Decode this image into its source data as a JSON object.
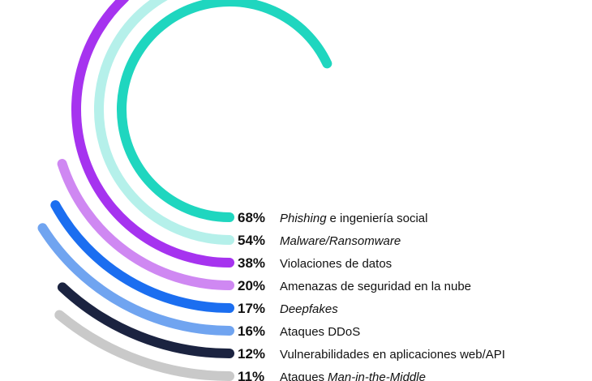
{
  "chart_data": {
    "type": "radial_bar",
    "values": [
      68,
      54,
      38,
      20,
      17,
      16,
      12,
      11
    ],
    "value_labels": [
      "68%",
      "54%",
      "38%",
      "20%",
      "17%",
      "16%",
      "12%",
      "11%"
    ],
    "colors": [
      "#1fd6bf",
      "#b5f0ea",
      "#a633ef",
      "#cf88f2",
      "#1b6ef0",
      "#70a4f0",
      "#1b2340",
      "#c9c9c9"
    ],
    "labels": [
      [
        {
          "text": "Phishing",
          "italic": true
        },
        {
          "text": "e ingeniería social",
          "italic": false
        }
      ],
      [
        {
          "text": "Malware/Ransomware",
          "italic": true
        }
      ],
      [
        {
          "text": "Violaciones de datos",
          "italic": false
        }
      ],
      [
        {
          "text": "Amenazas de seguridad en la nube",
          "italic": false
        }
      ],
      [
        {
          "text": "Deepfakes",
          "italic": true
        }
      ],
      [
        {
          "text": "Ataques DDoS",
          "italic": false
        }
      ],
      [
        {
          "text": "Vulnerabilidades en aplicaciones web/API",
          "italic": false
        }
      ],
      [
        {
          "text": "Ataques",
          "italic": false
        },
        {
          "text": "Man-in-the-Middle",
          "italic": true
        }
      ]
    ]
  }
}
